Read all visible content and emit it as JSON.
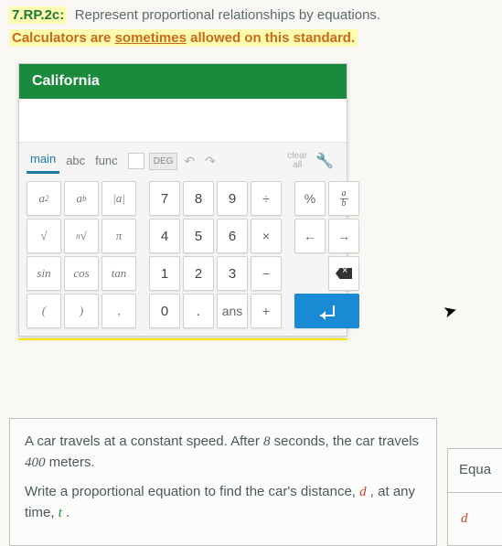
{
  "standard": {
    "code": "7.RP.2c:",
    "desc": "Represent proportional relationships by equations."
  },
  "calc_note": {
    "pre": "Calculators are ",
    "ul": "sometimes",
    "post": " allowed on this standard."
  },
  "calculator": {
    "title": "California",
    "tabs": {
      "main": "main",
      "abc": "abc",
      "func": "func"
    },
    "deg": "DEG",
    "clear": "clear",
    "all": "all",
    "keys": {
      "a2_base": "a",
      "a2_sup": "2",
      "ab_base": "a",
      "ab_sup": "b",
      "abs": "|a|",
      "sqrt": "√",
      "nroot_n": "n",
      "nroot_s": "√",
      "pi": "π",
      "sin": "sin",
      "cos": "cos",
      "tan": "tan",
      "lp": "(",
      "rp": ")",
      "comma": ",",
      "n7": "7",
      "n8": "8",
      "n9": "9",
      "div": "÷",
      "n4": "4",
      "n5": "5",
      "n6": "6",
      "mul": "×",
      "n1": "1",
      "n2": "2",
      "n3": "3",
      "sub": "−",
      "n0": "0",
      "dot": ".",
      "ans": "ans",
      "add": "+",
      "pct": "%",
      "frac_a": "a",
      "frac_b": "b",
      "left": "←",
      "right": "→"
    }
  },
  "problem": {
    "p1a": "A car travels at a constant speed. After ",
    "p1_num1": "8",
    "p1b": " seconds, the car travels ",
    "p1_num2": "400",
    "p1c": " meters.",
    "p2a": "Write a proportional equation to find the car's distance, ",
    "p2_d": "d",
    "p2b": " , at any time, ",
    "p2_t": "t",
    "p2c": " ."
  },
  "side": {
    "equa": "Equa",
    "d": "d"
  },
  "colors": {
    "header_green": "#1a8a3c",
    "tab_blue": "#1a7aa8",
    "enter_blue": "#1a8ad4",
    "highlight": "#fffbb0",
    "note_orange": "#c76a1a",
    "code_green": "#1a7a3a",
    "var_red": "#c7432a",
    "var_green": "#1a8a3a",
    "underline_yellow": "#f5e400"
  }
}
